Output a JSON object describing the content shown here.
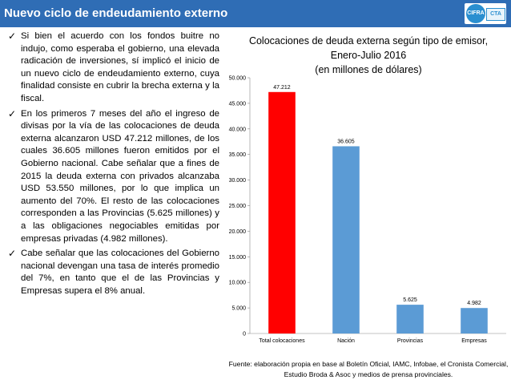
{
  "header": {
    "title": "Nuevo ciclo de endeudamiento externo",
    "logo_left": "CIFRA",
    "logo_right": "CTA"
  },
  "bullets": [
    "Si bien el acuerdo con los fondos buitre no indujo, como esperaba el gobierno, una elevada radicación de inversiones, sí implicó el inicio de un nuevo ciclo de endeudamiento externo, cuya finalidad consiste en cubrir la brecha externa y la fiscal.",
    "En los primeros 7 meses del año el ingreso de divisas por la vía de las colocaciones de deuda externa alcanzaron USD 47.212 millones, de los cuales 36.605 millones fueron emitidos por el Gobierno nacional. Cabe señalar que a fines de 2015 la deuda externa con privados alcanzaba USD 53.550 millones, por lo que implica un aumento del 70%. El resto de las colocaciones corresponden a las Provincias (5.625 millones) y a las obligaciones negociables emitidas por empresas privadas (4.982 millones).",
    "Cabe señalar que las colocaciones del Gobierno nacional devengan una tasa de interés promedio del 7%, en tanto que el de las Provincias y Empresas supera el 8% anual."
  ],
  "chart_data": {
    "type": "bar",
    "title_lines": [
      "Colocaciones de deuda externa según tipo de emisor,",
      "Enero-Julio 2016",
      "(en millones de dólares)"
    ],
    "categories": [
      "Total colocaciones",
      "Nación",
      "Provincias",
      "Empresas"
    ],
    "values": [
      47212,
      36605,
      5625,
      4982
    ],
    "value_labels": [
      "47.212",
      "36.605",
      "5.625",
      "4.982"
    ],
    "bar_colors": [
      "#ff0000",
      "#5b9bd5",
      "#5b9bd5",
      "#5b9bd5"
    ],
    "ylim": [
      0,
      50000
    ],
    "yticks": [
      0,
      5000,
      10000,
      15000,
      20000,
      25000,
      30000,
      35000,
      40000,
      45000,
      50000
    ],
    "ytick_labels": [
      "0",
      "5.000",
      "10.000",
      "15.000",
      "20.000",
      "25.000",
      "30.000",
      "35.000",
      "40.000",
      "45.000",
      "50.000"
    ],
    "xlabel": "",
    "ylabel": ""
  },
  "source": "Fuente: elaboración propia en base al Boletín Oficial, IAMC, Infobae, el Cronista Comercial, Estudio Broda & Asoc y medios de prensa provinciales."
}
